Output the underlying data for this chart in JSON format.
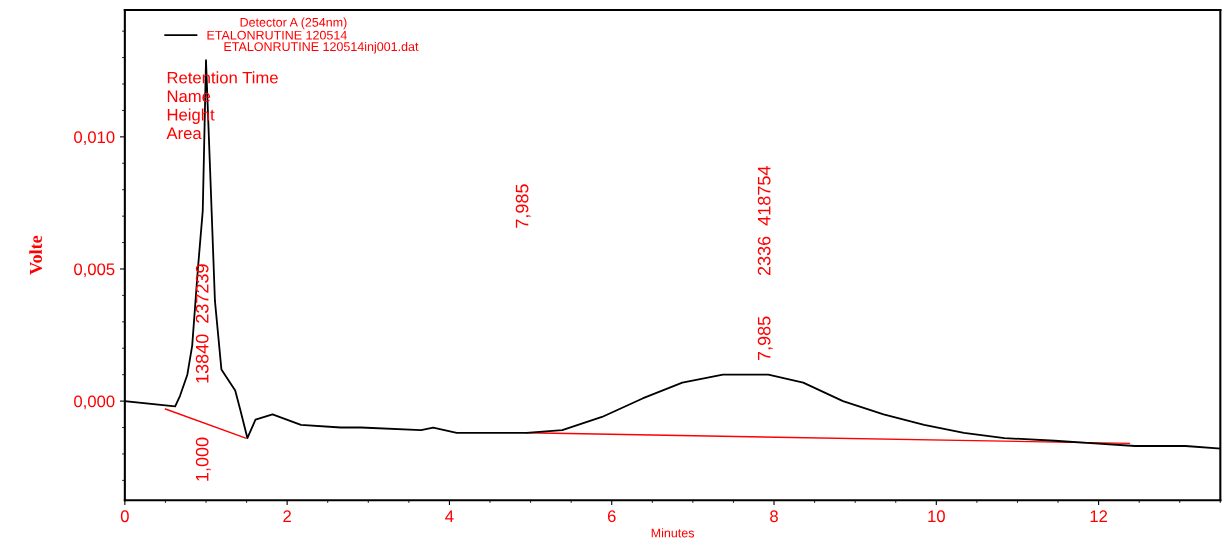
{
  "chart_data": {
    "type": "line",
    "xlabel": "Minutes",
    "ylabel": "Volte",
    "legend_title": "Detector A (254nm)",
    "legend": "top left",
    "grid": false,
    "marker": "none",
    "line_style": "solid",
    "xlim": [
      0,
      13.5
    ],
    "xticks": [
      0,
      2,
      4,
      6,
      8,
      10,
      12
    ],
    "ylim": [
      -0.00375,
      0.0148
    ],
    "yticks": [
      {
        "value": 0,
        "label": "0,000"
      },
      {
        "value": 0.005,
        "label": "0,005"
      },
      {
        "value": 0.01,
        "label": "0,010"
      }
    ],
    "series": [
      {
        "name": "ETALONRUTINE 120514",
        "color": "#000000",
        "x": [
          0,
          0.62,
          0.68,
          0.77,
          0.83,
          0.9,
          0.96,
          1.0,
          1.05,
          1.11,
          1.19,
          1.36,
          1.42,
          1.51,
          1.61,
          1.82,
          2.17,
          2.66,
          2.91,
          3.65,
          3.8,
          4.09,
          4.95,
          5.39,
          5.88,
          6.38,
          6.87,
          7.37,
          7.93,
          8.36,
          8.85,
          9.35,
          9.85,
          10.34,
          10.84,
          11.46,
          11.95,
          12.45,
          13.07,
          13.5
        ],
        "values": [
          0,
          -0.0002,
          0.0002,
          0.001,
          0.0021,
          0.005,
          0.0072,
          0.0129,
          0.0088,
          0.0038,
          0.0012,
          0.0004,
          -0.0003,
          -0.0014,
          -0.0007,
          -0.0005,
          -0.0009,
          -0.001,
          -0.001,
          -0.0011,
          -0.001,
          -0.0012,
          -0.0012,
          -0.0011,
          -0.0006,
          0.0001,
          0.0007,
          0.001,
          0.001,
          0.0007,
          0.0,
          -0.0005,
          -0.0009,
          -0.0012,
          -0.0014,
          -0.0015,
          -0.0016,
          -0.0017,
          -0.0017,
          -0.0018
        ]
      },
      {
        "color": "#ff0000",
        "x": [
          0.5,
          1.49,
          null,
          4.95,
          12.38
        ],
        "values": [
          -0.0003,
          -0.0014,
          null,
          -0.0012,
          -0.0016
        ]
      }
    ],
    "annotations": [
      "ETALONRUTINE 120514inj001.dat",
      "Retention Time",
      "Name",
      "Height",
      "Area",
      "1,000",
      "13840  237239",
      "7,985",
      "7,985",
      "2336  418754"
    ]
  }
}
